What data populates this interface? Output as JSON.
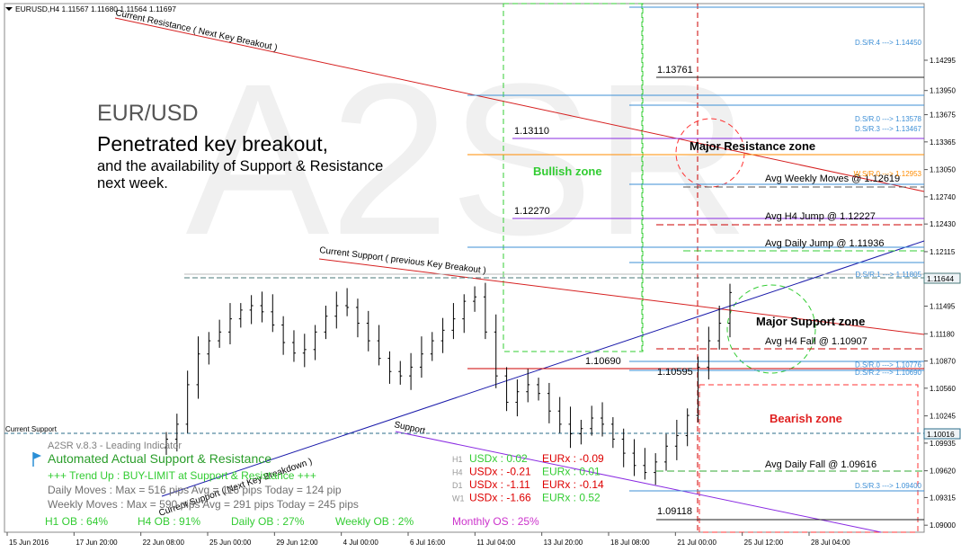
{
  "chart_data": {
    "type": "candlestick",
    "symbol_header": "EURUSD,H4  1.11567 1.11680 1.11564 1.11697",
    "watermark": "A2SR",
    "title": "EUR/USD",
    "subtitle": "Penetrated key breakout,",
    "description": [
      "and the availability of Support & Resistance",
      "next week."
    ],
    "ylim": [
      1.0892,
      1.1494
    ],
    "y_ticks": [
      "1.14295",
      "1.13950",
      "1.13675",
      "1.13365",
      "1.13050",
      "1.12740",
      "1.12430",
      "1.12115",
      "1.11805",
      "1.11495",
      "1.11180",
      "1.10870",
      "1.10560",
      "1.10245",
      "1.09935",
      "1.09620",
      "1.09315",
      "1.09000"
    ],
    "x_ticks": [
      "15 Jun 2016",
      "17 Jun 20:00",
      "22 Jun 08:00",
      "25 Jun 00:00",
      "29 Jun 12:00",
      "4 Jul 00:00",
      "6 Jul 16:00",
      "11 Jul 04:00",
      "13 Jul 20:00",
      "18 Jul 08:00",
      "21 Jul 00:00",
      "25 Jul 12:00",
      "28 Jul 04:00"
    ],
    "current_price": "1.11644",
    "current_support_price": "1.10016",
    "current_support_label": "Current Support",
    "dsr_levels": [
      {
        "label": "D.S/R.4 ---> 1.14450",
        "value": 1.1445,
        "color": "#3d8fd6"
      },
      {
        "label": "D.S/R.0 ---> 1.13578",
        "value": 1.13578,
        "color": "#3d8fd6"
      },
      {
        "label": "D.S/R.3 ---> 1.13467",
        "value": 1.13467,
        "color": "#3d8fd6"
      },
      {
        "label": "W.S/R.0 ---> 1.12953",
        "value": 1.12953,
        "color": "#ff8c00"
      },
      {
        "label": "D.S/R.1 ---> 1.11805",
        "value": 1.11805,
        "color": "#3d8fd6"
      },
      {
        "label": "D.S/R.0 ---> 1.10776",
        "value": 1.10776,
        "color": "#3d8fd6"
      },
      {
        "label": "D.S/R.2 ---> 1.10690",
        "value": 1.1069,
        "color": "#3d8fd6"
      },
      {
        "label": "D.S/R.3 ---> 1.09400",
        "value": 1.094,
        "color": "#3d8fd6"
      }
    ],
    "level_labels": [
      "1.13761",
      "1.13110",
      "1.12270",
      "1.10690",
      "1.10595",
      "1.09118"
    ],
    "avg_labels": [
      "Avg Weekly Moves @ 1.12619",
      "Avg H4 Jump @ 1.12227",
      "Avg Daily Jump @ 1.11936",
      "Avg H4 Fall @ 1.10907",
      "Avg Daily Fall @ 1.09616"
    ],
    "zones": {
      "resistance": "Major Resistance zone",
      "support": "Major Support zone",
      "bullish": "Bullish zone",
      "bearish": "Bearish zone"
    },
    "trendlines": {
      "resistance": "Current Resistance ( Next Key Breakout )",
      "support_prev": "Current Support ( previous Key Breakout )",
      "support_next": "Current Support ( Next Key Breakdown )",
      "support_short": "Support"
    },
    "indicator": {
      "version": "A2SR v.8.3 - Leading Indicator",
      "name": "Automated Actual Support & Resistance",
      "trend": "+++  Trend Up : BUY-LIMIT at Support & Resistance +++",
      "daily": "Daily Moves     : Max = 516 pips Avg = 116 pips Today = 124 pip",
      "weekly": "Weekly Moves : Max = 590 pips Avg = 291 pips Today = 245 pips",
      "ob": [
        "H1 OB : 64%",
        "H4 OB : 91%",
        "Daily OB : 27%",
        "Weekly OB : 2%"
      ],
      "os": "Monthly OS : 25%"
    },
    "strength": [
      {
        "tf": "H1",
        "usd": "USDx : 0.02",
        "eur": "EURx : -0.09",
        "usd_color": "#33cc33",
        "eur_color": "#dd0000"
      },
      {
        "tf": "H4",
        "usd": "USDx : -0.21",
        "eur": "EURx : 0.01",
        "usd_color": "#dd0000",
        "eur_color": "#33cc33"
      },
      {
        "tf": "D1",
        "usd": "USDx : -1.11",
        "eur": "EURx : -0.14",
        "usd_color": "#dd0000",
        "eur_color": "#dd0000"
      },
      {
        "tf": "W1",
        "usd": "USDx : -1.66",
        "eur": "EURx : 0.52",
        "usd_color": "#dd0000",
        "eur_color": "#33cc33"
      }
    ],
    "candles_approx_close": [
      1.0998,
      1.1015,
      1.106,
      1.1095,
      1.111,
      1.112,
      1.1135,
      1.1145,
      1.115,
      1.1143,
      1.1128,
      1.1108,
      1.1096,
      1.11,
      1.112,
      1.1138,
      1.115,
      1.1148,
      1.113,
      1.111,
      1.109,
      1.1075,
      1.107,
      1.108,
      1.1095,
      1.111,
      1.1122,
      1.1135,
      1.1155,
      1.116,
      1.112,
      1.107,
      1.104,
      1.1052,
      1.106,
      1.105,
      1.103,
      1.1015,
      1.1004,
      1.101,
      1.1022,
      1.1015,
      1.0998,
      1.0982,
      1.0968,
      1.096,
      1.0972,
      1.099,
      1.1002,
      1.1025,
      1.108,
      1.111,
      1.113,
      1.1165
    ]
  }
}
